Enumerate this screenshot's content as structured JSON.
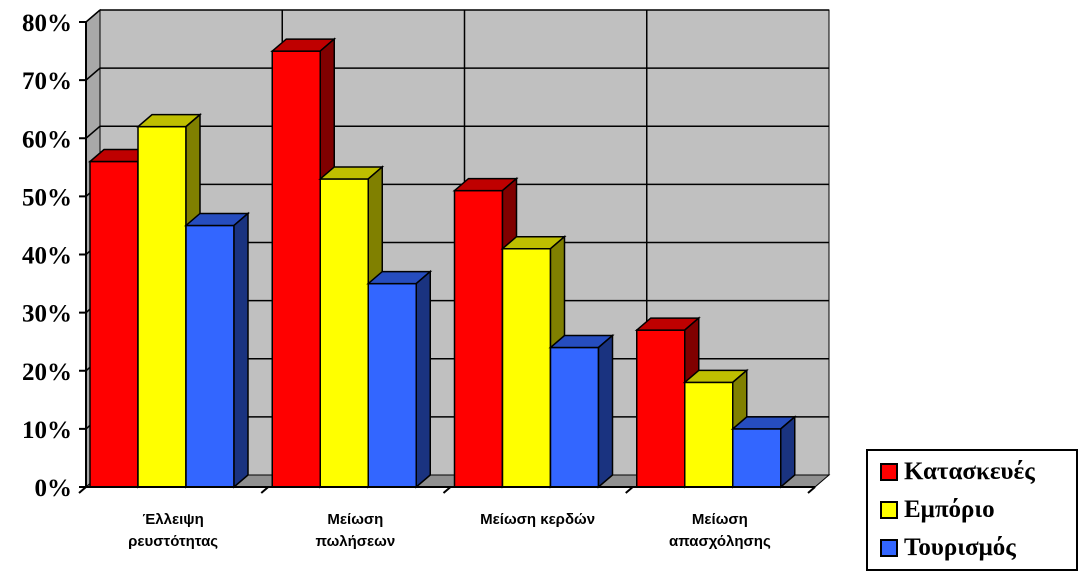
{
  "chart_data": {
    "type": "bar",
    "categories": [
      [
        "Έλλειψη",
        "ρευστότητας"
      ],
      [
        "Μείωση",
        "πωλήσεων"
      ],
      [
        "Μείωση κερδών"
      ],
      [
        "Μείωση",
        "απασχόλησης"
      ]
    ],
    "series": [
      {
        "name": "Κατασκευές",
        "color": "#ff0000",
        "values": [
          56,
          75,
          51,
          27
        ]
      },
      {
        "name": "Εμπόριο",
        "color": "#ffff00",
        "values": [
          62,
          53,
          41,
          18
        ]
      },
      {
        "name": "Τουρισμός",
        "color": "#3366ff",
        "values": [
          45,
          35,
          24,
          10
        ]
      }
    ],
    "yticks": [
      "0%",
      "10%",
      "20%",
      "30%",
      "40%",
      "50%",
      "60%",
      "70%",
      "80%"
    ],
    "ylim": [
      0,
      80
    ],
    "grid": true,
    "three_d": true,
    "legend_position": "bottom-right",
    "colors": {
      "wall": "#c0c0c0"
    }
  }
}
